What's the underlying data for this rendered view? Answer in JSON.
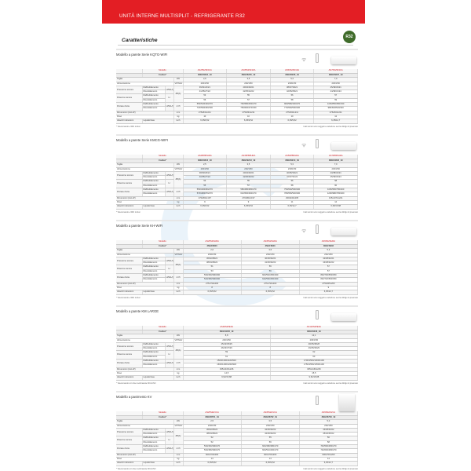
{
  "header": {
    "title": "UNITÀ INTERNE MULTISPLIT - REFRIGERANTE R32",
    "section": "Caratteristiche",
    "badge": "R32"
  },
  "row_labels": {
    "model": "Modello",
    "code": "Codice*",
    "size": "Taglia",
    "power": "Alimentazione",
    "sound_pressure": "Pressione sonora",
    "sound_power": "Potenza sonora",
    "airflow": "Portata d'aria",
    "dims": "Dimensioni (AxLxP)",
    "weight": "Peso",
    "pipes": "Attacchi tubazioni",
    "cool": "Raffreddamento",
    "heat": "Riscaldamento",
    "liquid_gas": "Liquido/Gas"
  },
  "units": {
    "size": "kW",
    "power": "V/Ph/Hz",
    "spl": "H/M/L/Q",
    "db": "dB(A)",
    "swl": "H",
    "air": "H/M/L/Q",
    "m3h": "m³/h",
    "mm": "mm",
    "kg": "kg",
    "inch": "inch"
  },
  "disclaimer": "I dati tecnici sono soggetti a variazione senza obbligo di preavviso",
  "sections": [
    {
      "title": "Modello a parete Serie KQTG-WIFI",
      "footnote": "* Telecomando e WiFi inclusi",
      "icons": [
        "wifi",
        "remote",
        "wall-unit"
      ],
      "models": [
        "AS25S2SF1FA",
        "AS35S2SF1FA",
        "AS50S2SF1FA",
        "AS70S2SF1FA"
      ],
      "codes": [
        "3NGF8234_19",
        "3NGF8235_19",
        "3NGF8236_19",
        "3NGF8237_19"
      ],
      "size": [
        "2,6",
        "3,5",
        "5,3",
        "7,0"
      ],
      "power": [
        "230/1/50",
        "230/1/50",
        "230/1/50",
        "230/1/50"
      ],
      "spl_c": [
        "36/31/24/21",
        "40/34/29/21",
        "38/37/30/21",
        "45/39/33/21"
      ],
      "spl_h": [
        "41/35/27/22",
        "42/35/24/22",
        "42/35/28/21",
        "44/39/31/24"
      ],
      "swl_c": [
        "53",
        "55",
        "56",
        "57"
      ],
      "swl_h": [
        "56",
        "57",
        "58",
        "59"
      ],
      "air_c": [
        "550/540/430/270",
        "760/580/450/270",
        "900/580/430/270",
        "1150/850/650/330"
      ],
      "air_h": [
        "720/590/460/330",
        "750/600/470/330",
        "770/660/500/330",
        "980/660/520/340"
      ],
      "dims": [
        "275x834x211",
        "275x834x211",
        "275x834x211",
        "275x834x211"
      ],
      "weight": [
        "10",
        "10",
        "10",
        "12"
      ],
      "pipes": [
        "6,35/9,52",
        "6,35/9,52",
        "6,35/9,52",
        "6,35/12,7"
      ]
    },
    {
      "title": "Modello a parete Serie KMCG-WIFI",
      "footnote": "* Telecomando e WiFi inclusi",
      "icons": [
        "wifi",
        "remote",
        "wall-unit"
      ],
      "models": [
        "AS25PBPHRA",
        "AS35PBPHRA",
        "AS50PBPHRA",
        "AS70PBPHRA"
      ],
      "codes": [
        "3NGF9212_19",
        "3NGF9213_19",
        "3NGF9214_19",
        "3NGF9218_19"
      ],
      "size": [
        "2,5",
        "3,5",
        "5,3",
        "7,0"
      ],
      "power": [
        "230/1/50",
        "230/1/50",
        "230/1/50",
        "230/1/50"
      ],
      "spl_c": [
        "38/33/26/21",
        "40/34/29/21",
        "40/35/30/21",
        "43/38/32/21"
      ],
      "spl_h": [
        "40/35/27/22",
        "42/36/30/22",
        "42/37/31/22",
        "45/39/33/24"
      ],
      "swl_c": [
        "53",
        "55",
        "56",
        "58"
      ],
      "swl_h": [
        "55",
        "57",
        "58",
        "60"
      ],
      "air_c": [
        "550/460/360/270",
        "580/480/380/270",
        "750/630/500/330",
        "1150/950/750/400"
      ],
      "air_h": [
        "570/480/370/270",
        "610/500/390/270",
        "780/650/520/330",
        "1200/980/780/400"
      ],
      "dims": [
        "270x802x197",
        "270x802x197",
        "290x940x205",
        "315x1072x221"
      ],
      "weight": [
        "9",
        "9",
        "11",
        "14"
      ],
      "pipes": [
        "6,35/9,52",
        "6,35/9,52",
        "6,35/12,7",
        "6,35/15,88"
      ]
    },
    {
      "title": "Modello a parete Serie KH-WIFI",
      "footnote": "* Telecomando e WiFi inclusi",
      "icons": [
        "wifi",
        "remote",
        "wall-unit"
      ],
      "models": [
        "AS25S2SHRA",
        "AS35S2SHRA",
        "AS50S2SHRA"
      ],
      "codes": [
        "3NGF8900",
        "3NGF8901",
        "3NGF8902"
      ],
      "size": [
        "2,6",
        "3,5",
        "5,3"
      ],
      "power": [
        "230/1/50",
        "230/1/50",
        "230/1/50"
      ],
      "spl_c": [
        "36/32/28/21",
        "40/36/30/21",
        "42/38/32/21"
      ],
      "spl_h": [
        "38/33/28/22",
        "41/36/30/22",
        "43/38/32/22"
      ],
      "swl_c": [
        "51",
        "56",
        "57"
      ],
      "swl_h": [
        "53",
        "56",
        "57"
      ],
      "air_c": [
        "530/460/390/290",
        "600/540/450/290",
        "800/700/550/350"
      ],
      "air_h": [
        "540/480/390/290",
        "620/560/450/290",
        "820/720/560/350"
      ],
      "dims": [
        "275x790x200",
        "275x790x200",
        "275x845x200"
      ],
      "weight": [
        "8",
        "8",
        "9"
      ],
      "pipes": [
        "6,35/9,52",
        "6,35/9,52",
        "6,35/12,7"
      ]
    },
    {
      "title": "Modello a parete KM LARGE",
      "footnote": "* Telecomando con timer settimanale INCLUSO",
      "icons": [
        "remote",
        "wall-unit"
      ],
      "models": [
        "AS90S2PEFA",
        "AS120S2PEFA"
      ],
      "codes": [
        "3NGF9245_19",
        "3NGF9246_19"
      ],
      "size": [
        "8,8",
        "12,1"
      ],
      "power": [
        "230/1/50",
        "230/1/50"
      ],
      "spl_c": [
        "45/42/35/25",
        "48/45/38/28"
      ],
      "spl_h": [
        "46/43/37/26",
        "49/45/39/29"
      ],
      "swl_c": [
        "59",
        "62"
      ],
      "swl_h": [
        "61",
        "63"
      ],
      "air_c": [
        "1500/1300/1100/910",
        "1700/1500/1300/1100"
      ],
      "air_h": [
        "1600/1400/1200/918",
        "1750/1550/1350/1100"
      ],
      "dims": [
        "335x1160x246",
        "335x1160x246"
      ],
      "weight": [
        "14,5",
        "15,5"
      ],
      "pipes": [
        "9,52/15,88",
        "9,52/15,88"
      ]
    },
    {
      "title": "Modello a pavimento KV",
      "footnote": "* Telecomando con timer settimanale INCLUSO",
      "icons": [
        "remote",
        "floor-unit"
      ],
      "models": [
        "AS25S2HVCA",
        "AS35S2HVCA",
        "AS50S2HVCA"
      ],
      "codes": [
        "3NGF8761_19",
        "3NGF8762_19",
        "3NGF8763_19"
      ],
      "size": [
        "2,5",
        "3,5",
        "5,0"
      ],
      "power": [
        "230/1/50",
        "230/1/50",
        "230/1/50"
      ],
      "spl_c": [
        "36/32/26/22",
        "42/36/30/22",
        "43/38/33/22"
      ],
      "spl_h": [
        "38/33/28/22",
        "42/36/30/22",
        "45/40/35/22"
      ],
      "swl_c": [
        "52",
        "55",
        "56"
      ],
      "swl_h": [
        "52",
        "56",
        "58"
      ],
      "air_c": [
        "530/460/390/270",
        "600/480/380/270",
        "700/590/480/270"
      ],
      "air_h": [
        "530/480/390/270",
        "600/510/400/270",
        "720/600/480/270"
      ],
      "dims": [
        "600x700x200",
        "600x700x200",
        "600x700x200"
      ],
      "weight": [
        "14",
        "14",
        "14"
      ],
      "pipes": [
        "6,35/9,52",
        "6,35/9,52",
        "6,35/12,7"
      ]
    }
  ]
}
